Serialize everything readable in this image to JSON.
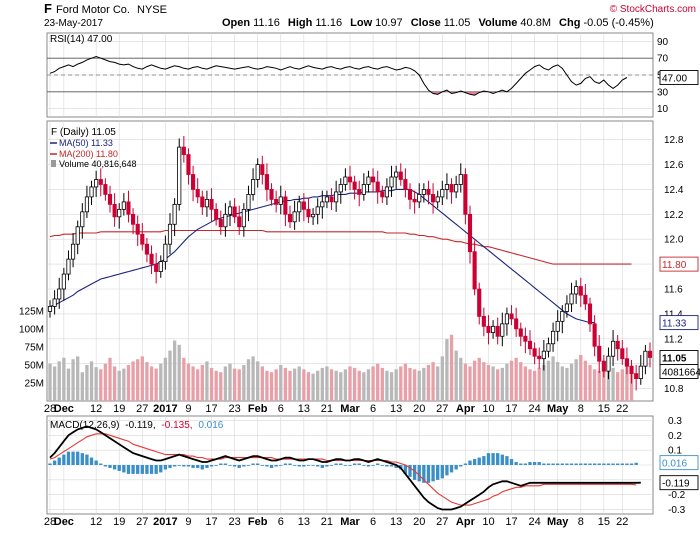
{
  "header": {
    "ticker": "F",
    "company": "Ford Motor Co.",
    "exchange": "NYSE",
    "date": "23-May-2017",
    "open_label": "Open",
    "open": "11.16",
    "high_label": "High",
    "high": "11.16",
    "low_label": "Low",
    "low": "10.97",
    "close_label": "Close",
    "close": "11.05",
    "volume_label": "Volume",
    "volume": "40.8M",
    "chg_label": "Chg",
    "chg": "-0.05 (-0.45%)",
    "watermark": "© StockCharts.com"
  },
  "colors": {
    "up": "#000000",
    "down": "#cc0033",
    "ma50": "#1a237e",
    "ma200": "#c62828",
    "vol_up": "#b8b8b8",
    "vol_down": "#e8a0a8",
    "macd_hist": "#3a8fc8",
    "grid": "#d8d8d8"
  },
  "legend": {
    "rsi": "RSI(14) 47.00",
    "price": "F (Daily) 11.05",
    "ma50": "MA(50) 11.33",
    "ma200": "MA(200) 11.80",
    "volume": "Volume 40,816,648",
    "macd_prefix": "MACD(12,26,9)",
    "macd_v1": "-0.119,",
    "macd_v2": "-0.135,",
    "macd_v3": "0.016"
  },
  "x_ticks_top": [
    "28",
    "Dec",
    "12",
    "19",
    "27",
    "2017",
    "9",
    "17",
    "23",
    "Feb",
    "6",
    "13",
    "21",
    "Mar",
    "6",
    "13",
    "20",
    "27",
    "Apr",
    "10",
    "17",
    "24",
    "May",
    "8",
    "15",
    "22"
  ],
  "x_ticks_bottom": [
    "28",
    "Dec",
    "12",
    "19",
    "27",
    "2017",
    "9",
    "17",
    "23",
    "Feb",
    "6",
    "13",
    "21",
    "Mar",
    "6",
    "13",
    "20",
    "27",
    "Apr",
    "10",
    "17",
    "24",
    "May",
    "8",
    "15",
    "22"
  ],
  "chart_data": [
    {
      "type": "line",
      "name": "RSI(14)",
      "y_ticks": [
        "90",
        "70",
        "50",
        "30",
        "10"
      ],
      "ylim": [
        0,
        100
      ],
      "reference_lines": [
        70,
        30
      ],
      "last_label": "47.00",
      "values": [
        52,
        54,
        58,
        60,
        62,
        60,
        63,
        65,
        68,
        70,
        72,
        70,
        68,
        66,
        65,
        63,
        62,
        63,
        60,
        58,
        57,
        60,
        62,
        60,
        58,
        57,
        59,
        61,
        60,
        58,
        57,
        59,
        60,
        58,
        57,
        59,
        61,
        60,
        59,
        58,
        57,
        58,
        59,
        60,
        58,
        57,
        58,
        60,
        59,
        58,
        56,
        58,
        60,
        58,
        57,
        59,
        61,
        59,
        58,
        57,
        59,
        60,
        58,
        57,
        59,
        60,
        58,
        57,
        59,
        60,
        58,
        57,
        59,
        60,
        58,
        56,
        57,
        59,
        58,
        55,
        50,
        40,
        32,
        28,
        27,
        30,
        32,
        28,
        29,
        31,
        29,
        27,
        26,
        29,
        31,
        30,
        28,
        30,
        32,
        30,
        34,
        40,
        46,
        52,
        56,
        60,
        62,
        58,
        56,
        60,
        62,
        58,
        50,
        42,
        38,
        40,
        46,
        48,
        42,
        40,
        44,
        38,
        34,
        38,
        44,
        47
      ]
    },
    {
      "type": "candlestick",
      "name": "F (Daily)",
      "y_ticks": [
        "12.8",
        "12.6",
        "12.4",
        "12.2",
        "12.0",
        "11.8",
        "11.6",
        "11.4",
        "11.2",
        "11.0",
        "10.8"
      ],
      "ylim": [
        10.7,
        12.95
      ],
      "last_labels": {
        "ma200": "11.80",
        "ma50": "11.33",
        "close": "11.05"
      },
      "volume_ticks": [
        "125M",
        "100M",
        "75M",
        "50M",
        "25M"
      ],
      "volume_last_label": "40816648",
      "close": [
        11.46,
        11.52,
        11.6,
        11.72,
        11.84,
        11.96,
        12.1,
        12.22,
        12.34,
        12.42,
        12.48,
        12.44,
        12.36,
        12.28,
        12.18,
        12.24,
        12.3,
        12.2,
        12.12,
        12.04,
        11.96,
        11.88,
        11.8,
        11.74,
        11.82,
        11.96,
        12.12,
        12.28,
        12.74,
        12.68,
        12.52,
        12.4,
        12.34,
        12.26,
        12.32,
        12.24,
        12.16,
        12.1,
        12.2,
        12.26,
        12.18,
        12.1,
        12.24,
        12.36,
        12.48,
        12.6,
        12.52,
        12.4,
        12.32,
        12.28,
        12.34,
        12.2,
        12.14,
        12.22,
        12.3,
        12.24,
        12.18,
        12.2,
        12.26,
        12.3,
        12.34,
        12.3,
        12.38,
        12.44,
        12.5,
        12.46,
        12.4,
        12.36,
        12.44,
        12.5,
        12.46,
        12.38,
        12.34,
        12.42,
        12.5,
        12.54,
        12.48,
        12.4,
        12.32,
        12.3,
        12.36,
        12.4,
        12.36,
        12.3,
        12.34,
        12.4,
        12.44,
        12.38,
        12.44,
        12.52,
        12.2,
        11.9,
        11.6,
        11.38,
        11.3,
        11.25,
        11.3,
        11.22,
        11.32,
        11.4,
        11.36,
        11.28,
        11.22,
        11.18,
        11.12,
        11.06,
        11.04,
        11.1,
        11.16,
        11.26,
        11.34,
        11.42,
        11.48,
        11.56,
        11.62,
        11.55,
        11.48,
        11.32,
        11.14,
        11.02,
        10.94,
        11.06,
        11.18,
        11.12,
        11.04,
        10.98,
        10.92,
        10.88,
        10.98,
        11.1,
        11.05
      ],
      "ma50": [
        11.46,
        11.47,
        11.49,
        11.51,
        11.53,
        11.55,
        11.58,
        11.6,
        11.62,
        11.64,
        11.66,
        11.68,
        11.69,
        11.7,
        11.71,
        11.72,
        11.73,
        11.74,
        11.75,
        11.76,
        11.77,
        11.78,
        11.79,
        11.8,
        11.82,
        11.84,
        11.87,
        11.9,
        11.94,
        11.98,
        12.02,
        12.05,
        12.08,
        12.1,
        12.12,
        12.14,
        12.16,
        12.17,
        12.18,
        12.19,
        12.2,
        12.21,
        12.22,
        12.23,
        12.24,
        12.25,
        12.26,
        12.27,
        12.28,
        12.29,
        12.3,
        12.31,
        12.31,
        12.32,
        12.32,
        12.33,
        12.33,
        12.34,
        12.34,
        12.35,
        12.35,
        12.35,
        12.36,
        12.36,
        12.36,
        12.37,
        12.37,
        12.37,
        12.38,
        12.38,
        12.38,
        12.38,
        12.39,
        12.39,
        12.39,
        12.4,
        12.4,
        12.4,
        12.4,
        12.38,
        12.36,
        12.33,
        12.3,
        12.27,
        12.24,
        12.21,
        12.18,
        12.15,
        12.12,
        12.09,
        12.06,
        12.03,
        12.0,
        11.97,
        11.94,
        11.91,
        11.88,
        11.85,
        11.82,
        11.79,
        11.76,
        11.73,
        11.7,
        11.67,
        11.64,
        11.61,
        11.58,
        11.55,
        11.52,
        11.49,
        11.46,
        11.43,
        11.4,
        11.38,
        11.36,
        11.35,
        11.34,
        11.33,
        11.33
      ],
      "ma200": [
        12.02,
        12.03,
        12.03,
        12.04,
        12.04,
        12.04,
        12.05,
        12.05,
        12.05,
        12.05,
        12.05,
        12.06,
        12.06,
        12.06,
        12.06,
        12.06,
        12.06,
        12.06,
        12.06,
        12.06,
        12.06,
        12.06,
        12.06,
        12.06,
        12.06,
        12.07,
        12.07,
        12.07,
        12.07,
        12.07,
        12.07,
        12.07,
        12.07,
        12.07,
        12.07,
        12.07,
        12.07,
        12.07,
        12.07,
        12.07,
        12.07,
        12.07,
        12.07,
        12.07,
        12.07,
        12.07,
        12.07,
        12.06,
        12.06,
        12.06,
        12.06,
        12.06,
        12.06,
        12.06,
        12.06,
        12.06,
        12.06,
        12.06,
        12.06,
        12.06,
        12.06,
        12.06,
        12.06,
        12.06,
        12.06,
        12.06,
        12.06,
        12.06,
        12.06,
        12.06,
        12.06,
        12.06,
        12.06,
        12.05,
        12.05,
        12.05,
        12.05,
        12.05,
        12.04,
        12.04,
        12.03,
        12.03,
        12.02,
        12.02,
        12.01,
        12.0,
        12.0,
        11.99,
        11.98,
        11.98,
        11.97,
        11.96,
        11.96,
        11.95,
        11.94,
        11.94,
        11.93,
        11.92,
        11.91,
        11.9,
        11.89,
        11.88,
        11.87,
        11.86,
        11.85,
        11.84,
        11.83,
        11.82,
        11.81,
        11.8,
        11.8,
        11.8,
        11.8,
        11.8,
        11.8,
        11.8,
        11.8,
        11.8,
        11.8,
        11.8,
        11.8,
        11.8,
        11.8,
        11.8,
        11.8,
        11.8,
        11.8
      ],
      "volume_millions": [
        52,
        48,
        55,
        60,
        45,
        58,
        62,
        40,
        50,
        55,
        47,
        44,
        52,
        60,
        48,
        42,
        45,
        50,
        55,
        58,
        62,
        54,
        48,
        45,
        52,
        60,
        70,
        84,
        78,
        60,
        52,
        48,
        44,
        50,
        55,
        46,
        42,
        40,
        48,
        52,
        45,
        44,
        50,
        58,
        62,
        55,
        48,
        42,
        40,
        44,
        50,
        46,
        42,
        45,
        48,
        44,
        40,
        38,
        42,
        46,
        48,
        44,
        42,
        40,
        44,
        48,
        46,
        42,
        40,
        44,
        48,
        52,
        46,
        42,
        40,
        44,
        48,
        52,
        46,
        44,
        42,
        46,
        50,
        54,
        48,
        62,
        86,
        92,
        70,
        60,
        52,
        48,
        56,
        60,
        54,
        50,
        48,
        44,
        46,
        52,
        56,
        60,
        54,
        48,
        44,
        42,
        46,
        50,
        56,
        62,
        54,
        48,
        46,
        52,
        58,
        64,
        56,
        50,
        44,
        42,
        48,
        52,
        46,
        40,
        44,
        58,
        41
      ]
    },
    {
      "type": "line",
      "name": "MACD(12,26,9)",
      "y_ticks": [
        "0.3",
        "0.2",
        "0.1",
        "0.0",
        "-0.1",
        "-0.2",
        "-0.3"
      ],
      "ylim": [
        -0.33,
        0.33
      ],
      "last_labels": {
        "histogram": "0.016",
        "macd": "-0.119"
      },
      "macd": [
        0.05,
        0.08,
        0.12,
        0.16,
        0.2,
        0.22,
        0.24,
        0.25,
        0.26,
        0.25,
        0.24,
        0.22,
        0.2,
        0.18,
        0.16,
        0.14,
        0.12,
        0.1,
        0.08,
        0.07,
        0.06,
        0.05,
        0.04,
        0.03,
        0.03,
        0.04,
        0.05,
        0.06,
        0.07,
        0.06,
        0.05,
        0.04,
        0.03,
        0.02,
        0.02,
        0.03,
        0.04,
        0.05,
        0.06,
        0.05,
        0.04,
        0.03,
        0.04,
        0.05,
        0.06,
        0.06,
        0.05,
        0.04,
        0.03,
        0.03,
        0.04,
        0.05,
        0.05,
        0.04,
        0.03,
        0.03,
        0.04,
        0.04,
        0.03,
        0.02,
        0.02,
        0.03,
        0.04,
        0.04,
        0.03,
        0.03,
        0.04,
        0.04,
        0.03,
        0.02,
        0.03,
        0.04,
        0.03,
        0.02,
        0.01,
        0.0,
        -0.02,
        -0.06,
        -0.1,
        -0.14,
        -0.18,
        -0.22,
        -0.25,
        -0.27,
        -0.29,
        -0.3,
        -0.3,
        -0.3,
        -0.29,
        -0.28,
        -0.26,
        -0.24,
        -0.22,
        -0.2,
        -0.18,
        -0.15,
        -0.13,
        -0.12,
        -0.11,
        -0.11,
        -0.12,
        -0.13,
        -0.14,
        -0.13,
        -0.12,
        -0.12,
        -0.12,
        -0.12,
        -0.12,
        -0.12,
        -0.12,
        -0.12,
        -0.12,
        -0.12,
        -0.12,
        -0.12,
        -0.12,
        -0.12,
        -0.12,
        -0.12,
        -0.12,
        -0.12,
        -0.12,
        -0.12,
        -0.12,
        -0.12,
        -0.12,
        -0.12,
        -0.119
      ],
      "signal": [
        0.04,
        0.05,
        0.07,
        0.09,
        0.11,
        0.13,
        0.15,
        0.17,
        0.19,
        0.2,
        0.21,
        0.21,
        0.21,
        0.2,
        0.19,
        0.18,
        0.17,
        0.16,
        0.14,
        0.13,
        0.12,
        0.11,
        0.1,
        0.09,
        0.08,
        0.07,
        0.07,
        0.07,
        0.07,
        0.07,
        0.06,
        0.06,
        0.05,
        0.05,
        0.04,
        0.04,
        0.04,
        0.04,
        0.05,
        0.05,
        0.05,
        0.05,
        0.05,
        0.05,
        0.05,
        0.05,
        0.05,
        0.05,
        0.05,
        0.04,
        0.04,
        0.04,
        0.04,
        0.04,
        0.04,
        0.04,
        0.04,
        0.04,
        0.04,
        0.04,
        0.03,
        0.03,
        0.03,
        0.03,
        0.03,
        0.03,
        0.03,
        0.03,
        0.03,
        0.03,
        0.03,
        0.03,
        0.03,
        0.03,
        0.02,
        0.02,
        0.01,
        0.0,
        -0.02,
        -0.04,
        -0.07,
        -0.1,
        -0.13,
        -0.16,
        -0.19,
        -0.21,
        -0.23,
        -0.25,
        -0.26,
        -0.27,
        -0.27,
        -0.27,
        -0.26,
        -0.25,
        -0.24,
        -0.23,
        -0.21,
        -0.2,
        -0.18,
        -0.17,
        -0.16,
        -0.15,
        -0.15,
        -0.14,
        -0.14,
        -0.14,
        -0.14,
        -0.13,
        -0.13,
        -0.13,
        -0.13,
        -0.13,
        -0.13,
        -0.13,
        -0.13,
        -0.13,
        -0.13,
        -0.13,
        -0.13,
        -0.13,
        -0.13,
        -0.13,
        -0.13,
        -0.13,
        -0.13,
        -0.13,
        -0.13,
        -0.135
      ]
    }
  ]
}
